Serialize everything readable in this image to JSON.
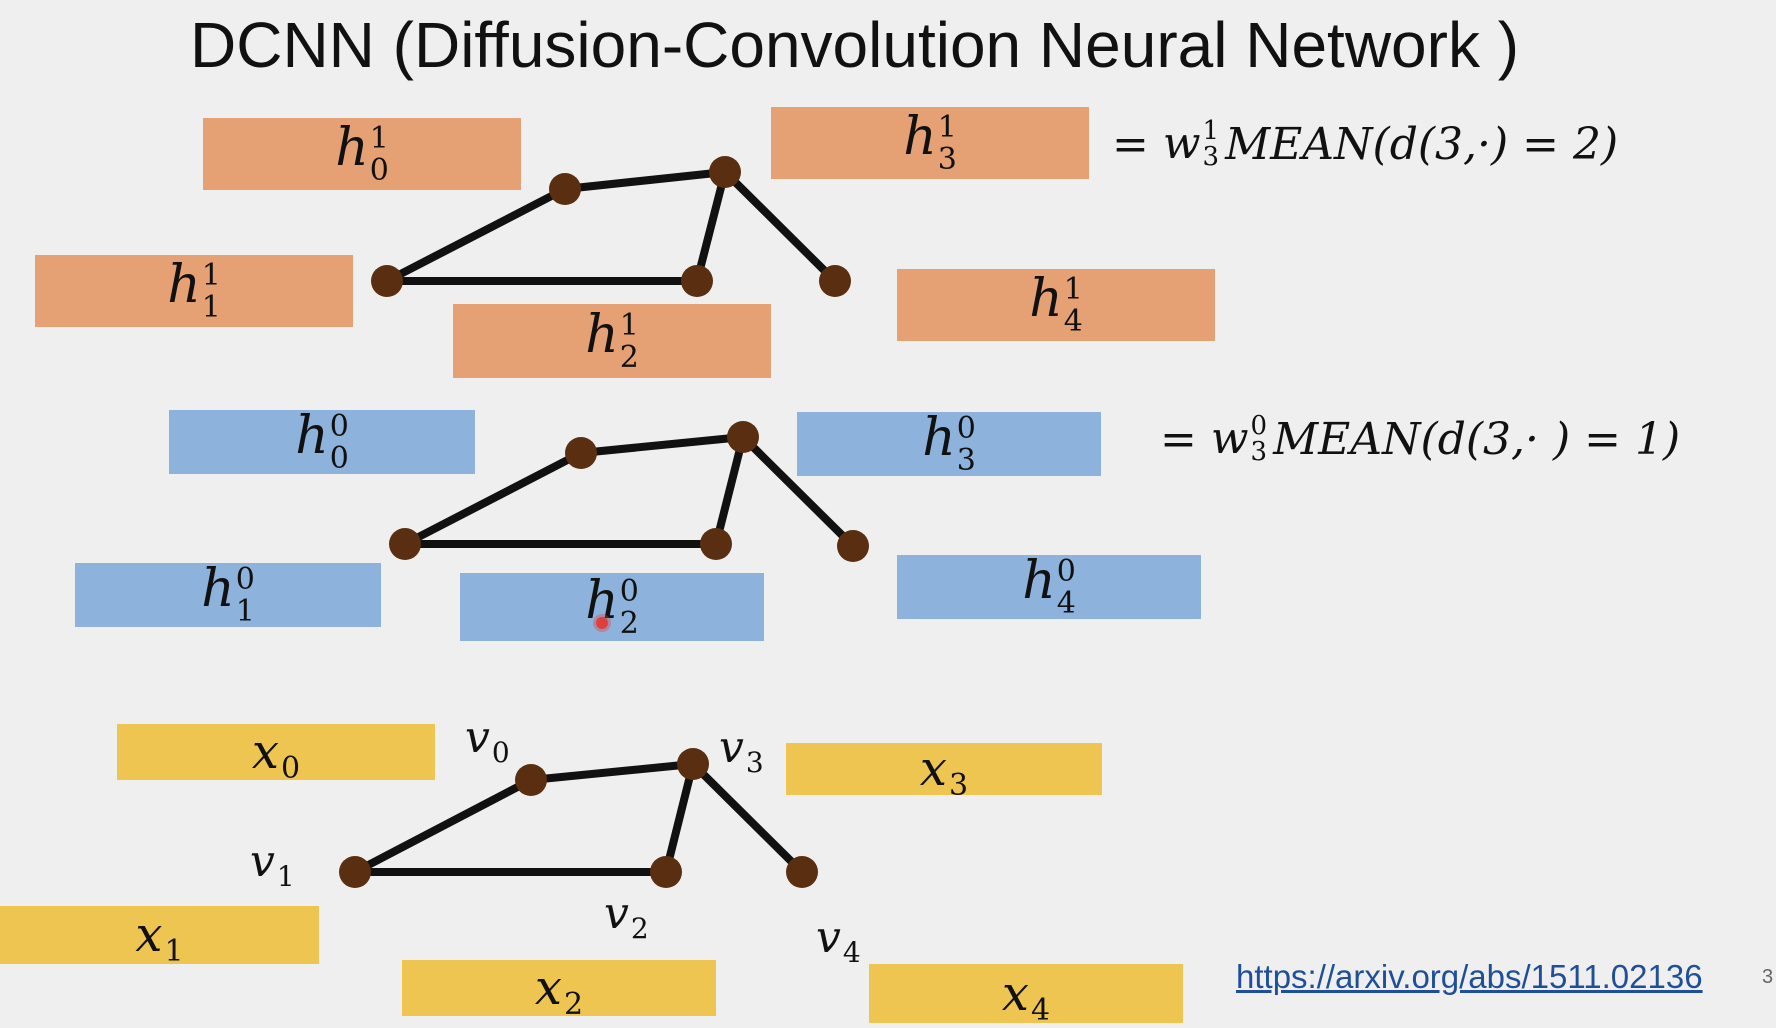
{
  "title": "DCNN (Diffusion-Convolution Neural Network )",
  "layer1": {
    "boxes": [
      {
        "base": "h",
        "sup": "1",
        "sub": "0"
      },
      {
        "base": "h",
        "sup": "1",
        "sub": "1"
      },
      {
        "base": "h",
        "sup": "1",
        "sub": "2"
      },
      {
        "base": "h",
        "sup": "1",
        "sub": "3"
      },
      {
        "base": "h",
        "sup": "1",
        "sub": "4"
      }
    ],
    "formula": {
      "eq": "=",
      "w": "w",
      "sup": "1",
      "sub": "3",
      "rest": "MEAN(d(3,·) = 2)"
    }
  },
  "layer0": {
    "boxes": [
      {
        "base": "h",
        "sup": "0",
        "sub": "0"
      },
      {
        "base": "h",
        "sup": "0",
        "sub": "1"
      },
      {
        "base": "h",
        "sup": "0",
        "sub": "2"
      },
      {
        "base": "h",
        "sup": "0",
        "sub": "3"
      },
      {
        "base": "h",
        "sup": "0",
        "sub": "4"
      }
    ],
    "formula": {
      "eq": "=",
      "w": "w",
      "sup": "0",
      "sub": "3",
      "rest": "MEAN(d(3,· ) = 1)"
    }
  },
  "input": {
    "boxes": [
      {
        "base": "x",
        "sub": "0"
      },
      {
        "base": "x",
        "sub": "1"
      },
      {
        "base": "x",
        "sub": "2"
      },
      {
        "base": "x",
        "sub": "3"
      },
      {
        "base": "x",
        "sub": "4"
      }
    ],
    "vertex_labels": [
      {
        "base": "v",
        "sub": "0"
      },
      {
        "base": "v",
        "sub": "1"
      },
      {
        "base": "v",
        "sub": "2"
      },
      {
        "base": "v",
        "sub": "3"
      },
      {
        "base": "v",
        "sub": "4"
      }
    ]
  },
  "graph_edges": [
    [
      0,
      1
    ],
    [
      0,
      3
    ],
    [
      1,
      2
    ],
    [
      2,
      3
    ],
    [
      3,
      4
    ]
  ],
  "colors": {
    "layer1_box": "#e5a074",
    "layer0_box": "#8db2db",
    "input_box": "#efc552",
    "node": "#5a2e10",
    "edge": "#111111"
  },
  "link": "https://arxiv.org/abs/1511.02136",
  "page_number": "3"
}
